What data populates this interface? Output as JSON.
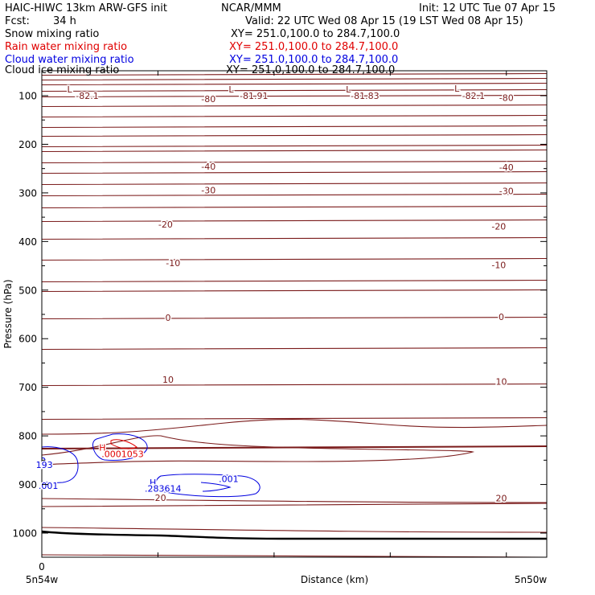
{
  "header": {
    "model": "HAIC-HIWC 13km ARW-GFS init",
    "org": "NCAR/MMM",
    "init": "Init: 12 UTC Tue 07 Apr 15",
    "fcst_label": "Fcst:",
    "fcst_value": "34 h",
    "valid": "Valid: 22 UTC Wed 08 Apr 15 (19 LST Wed 08 Apr 15)",
    "fields": [
      {
        "name": "Snow mixing ratio",
        "xy": "XY= 251.0,100.0 to 284.7,100.0",
        "color": "#000000"
      },
      {
        "name": "Rain water mixing ratio",
        "xy": "XY= 251.0,100.0 to 284.7,100.0",
        "color": "#e00000"
      },
      {
        "name": "Cloud water mixing ratio",
        "xy": "XY= 251.0,100.0 to 284.7,100.0",
        "color": "#0000e0"
      },
      {
        "name": "Cloud ice mixing ratio",
        "xy": "XY= 251.0,100.0 to 284.7,100.0",
        "color": "#000000"
      }
    ]
  },
  "chart_data": {
    "type": "contour",
    "xlabel": "Distance (km)",
    "ylabel": "Pressure (hPa)",
    "x_tick_labels": [
      "0"
    ],
    "x_end_labels": [
      "5n54w",
      "5n50w"
    ],
    "y_ticks": [
      100,
      200,
      300,
      400,
      500,
      600,
      700,
      800,
      900,
      1000
    ],
    "ylim": [
      1050,
      50
    ],
    "temperature_contour_labels": [
      {
        "text": "-82.1",
        "x": 0.09,
        "p": 100
      },
      {
        "text": "-81.91",
        "x": 0.42,
        "p": 100
      },
      {
        "text": "-81.83",
        "x": 0.64,
        "p": 100
      },
      {
        "text": "-82.1",
        "x": 0.855,
        "p": 100
      },
      {
        "text": "-80",
        "x": 0.33,
        "p": 107
      },
      {
        "text": "-80",
        "x": 0.92,
        "p": 104
      },
      {
        "text": "-40",
        "x": 0.33,
        "p": 246
      },
      {
        "text": "-40",
        "x": 0.92,
        "p": 247
      },
      {
        "text": "-30",
        "x": 0.33,
        "p": 294
      },
      {
        "text": "-30",
        "x": 0.92,
        "p": 296
      },
      {
        "text": "-20",
        "x": 0.245,
        "p": 365
      },
      {
        "text": "-20",
        "x": 0.905,
        "p": 369
      },
      {
        "text": "-10",
        "x": 0.26,
        "p": 444
      },
      {
        "text": "-10",
        "x": 0.905,
        "p": 448
      },
      {
        "text": "0",
        "x": 0.25,
        "p": 557
      },
      {
        "text": "0",
        "x": 0.91,
        "p": 555
      },
      {
        "text": "10",
        "x": 0.25,
        "p": 684
      },
      {
        "text": "10",
        "x": 0.91,
        "p": 688
      },
      {
        "text": "20",
        "x": 0.235,
        "p": 927
      },
      {
        "text": "20",
        "x": 0.91,
        "p": 928
      }
    ],
    "low_markers": [
      {
        "text": "L",
        "x": 0.055,
        "p": 87
      },
      {
        "text": "L",
        "x": 0.375,
        "p": 87
      },
      {
        "text": "L",
        "x": 0.607,
        "p": 87
      },
      {
        "text": "L",
        "x": 0.822,
        "p": 85
      }
    ],
    "rain_water": {
      "label": ".0001053",
      "marker": "H",
      "x": 0.16,
      "p": 837,
      "color": "#e00000"
    },
    "cloud_water": [
      {
        "label": "193",
        "x": 0.005,
        "p": 859,
        "color": "#0000e0"
      },
      {
        "label": ".001",
        "x": 0.013,
        "p": 902,
        "color": "#0000e0"
      },
      {
        "label": ".001",
        "x": 0.37,
        "p": 888,
        "color": "#0000e0"
      },
      {
        "label": ".283614",
        "x": 0.24,
        "p": 908,
        "color": "#0000e0",
        "marker": "H"
      }
    ]
  }
}
